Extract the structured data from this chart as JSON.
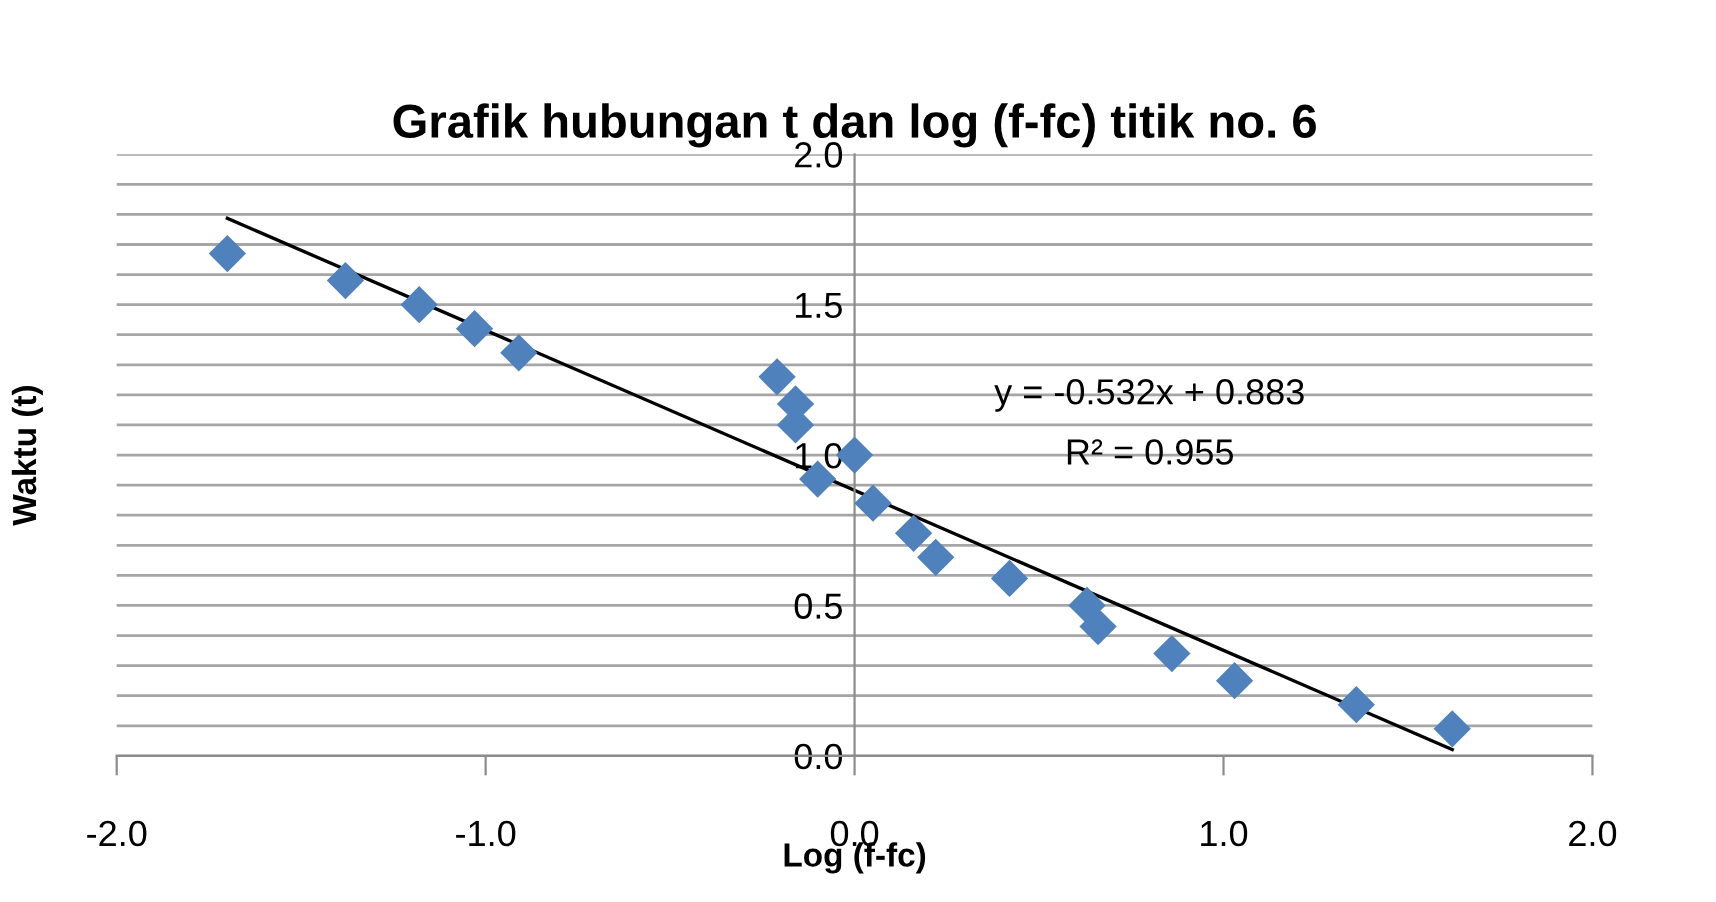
{
  "chart_data": {
    "type": "scatter",
    "title": "Grafik hubungan t dan log (f-fc) titik no. 6",
    "xlabel": "Log (f-fc)",
    "ylabel": "Waktu (t)",
    "x": [
      -1.7,
      -1.38,
      -1.18,
      -1.03,
      -0.91,
      -0.21,
      -0.16,
      -0.16,
      -0.1,
      0.0,
      0.05,
      0.16,
      0.22,
      0.42,
      0.63,
      0.66,
      0.86,
      1.03,
      1.36,
      1.62
    ],
    "series": [
      {
        "color": "#4f81bd",
        "marker": "diamond",
        "values": [
          1.67,
          1.58,
          1.5,
          1.42,
          1.34,
          1.26,
          1.17,
          1.1,
          0.92,
          1.0,
          0.84,
          0.74,
          0.66,
          0.59,
          0.5,
          0.43,
          0.34,
          0.25,
          0.17,
          0.09
        ]
      },
      {
        "type": "line",
        "color": "#000000",
        "x": [
          -1.7,
          1.62
        ],
        "values": [
          1.787,
          0.021
        ]
      }
    ],
    "annotations": [
      "y = -0.532x + 0.883",
      "R² = 0.955"
    ],
    "xlim": [
      -2,
      2
    ],
    "xticks": [
      {
        "value": -2,
        "label": "-2.0"
      },
      {
        "value": -1,
        "label": "-1.0"
      },
      {
        "value": 0,
        "label": "0.0"
      },
      {
        "value": 1,
        "label": "1.0"
      },
      {
        "value": 2,
        "label": "2.0"
      }
    ],
    "ylim": [
      0,
      2
    ],
    "yticks": [
      {
        "value": 0,
        "label": "0.0"
      },
      {
        "value": 0.1,
        "label": null
      },
      {
        "value": 0.2,
        "label": null
      },
      {
        "value": 0.3,
        "label": null
      },
      {
        "value": 0.4,
        "label": null
      },
      {
        "value": 0.5,
        "label": "0.5"
      },
      {
        "value": 0.6,
        "label": null
      },
      {
        "value": 0.7,
        "label": null
      },
      {
        "value": 0.8,
        "label": null
      },
      {
        "value": 0.9,
        "label": null
      },
      {
        "value": 1.0,
        "label": "1.0"
      },
      {
        "value": 1.1,
        "label": null
      },
      {
        "value": 1.2,
        "label": null
      },
      {
        "value": 1.3,
        "label": null
      },
      {
        "value": 1.4,
        "label": null
      },
      {
        "value": 1.5,
        "label": "1.5"
      },
      {
        "value": 1.6,
        "label": null
      },
      {
        "value": 1.7,
        "label": null
      },
      {
        "value": 1.8,
        "label": null
      },
      {
        "value": 1.9,
        "label": null
      },
      {
        "value": 2.0,
        "label": "2.0"
      }
    ],
    "grid": "y"
  }
}
